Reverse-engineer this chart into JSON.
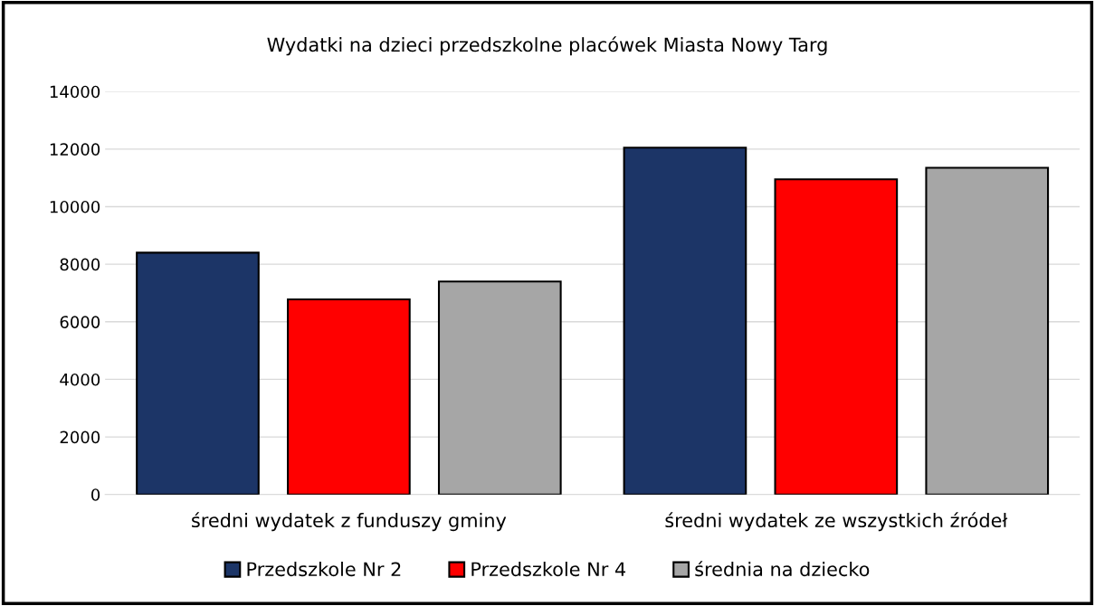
{
  "chart_data": {
    "type": "bar",
    "title": "Wydatki na dzieci przedszkolne placówek Miasta Nowy Targ",
    "categories": [
      "średni wydatek z funduszy gminy",
      "średni wydatek ze wszystkich źródeł"
    ],
    "series": [
      {
        "name": "Przedszkole Nr 2",
        "color": "#1c3567",
        "values": [
          8400,
          12050
        ]
      },
      {
        "name": "Przedszkole Nr 4",
        "color": "#ff0000",
        "values": [
          6780,
          10950
        ]
      },
      {
        "name": "średnia na dziecko",
        "color": "#a6a6a6",
        "values": [
          7400,
          11350
        ]
      }
    ],
    "ylim": [
      0,
      14000
    ],
    "yticks": [
      0,
      2000,
      4000,
      6000,
      8000,
      10000,
      12000,
      14000
    ],
    "grid": "y",
    "legend": "bottom"
  }
}
